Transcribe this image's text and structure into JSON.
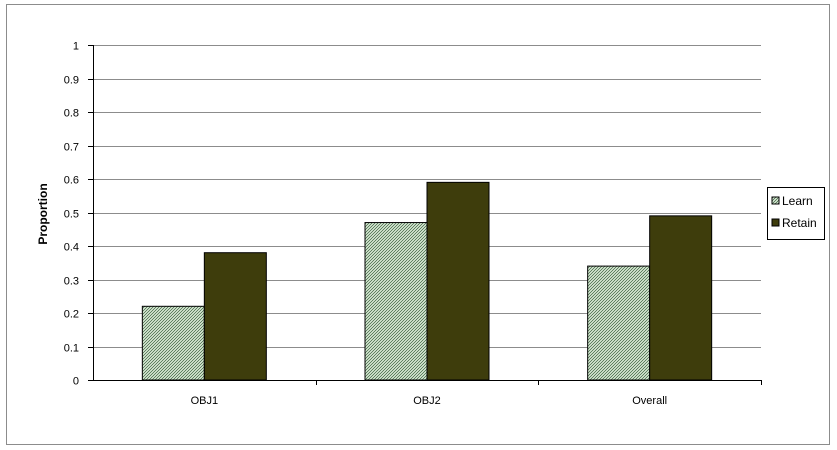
{
  "chart_data": {
    "type": "bar",
    "title": "",
    "xlabel": "",
    "ylabel": "Proportion",
    "ylim": [
      0,
      1
    ],
    "yticks": [
      "0",
      "0.1",
      "0.2",
      "0.3",
      "0.4",
      "0.5",
      "0.6",
      "0.7",
      "0.8",
      "0.9",
      "1"
    ],
    "categories": [
      "OBJ1",
      "OBJ2",
      "Overall"
    ],
    "series": [
      {
        "name": "Learn",
        "values": [
          0.22,
          0.47,
          0.34
        ],
        "color": "#8fae8f",
        "pattern": "dotted-hatch"
      },
      {
        "name": "Retain",
        "values": [
          0.38,
          0.59,
          0.49
        ],
        "color": "#3e3d0c"
      }
    ],
    "grid": true,
    "legend_position": "right"
  }
}
